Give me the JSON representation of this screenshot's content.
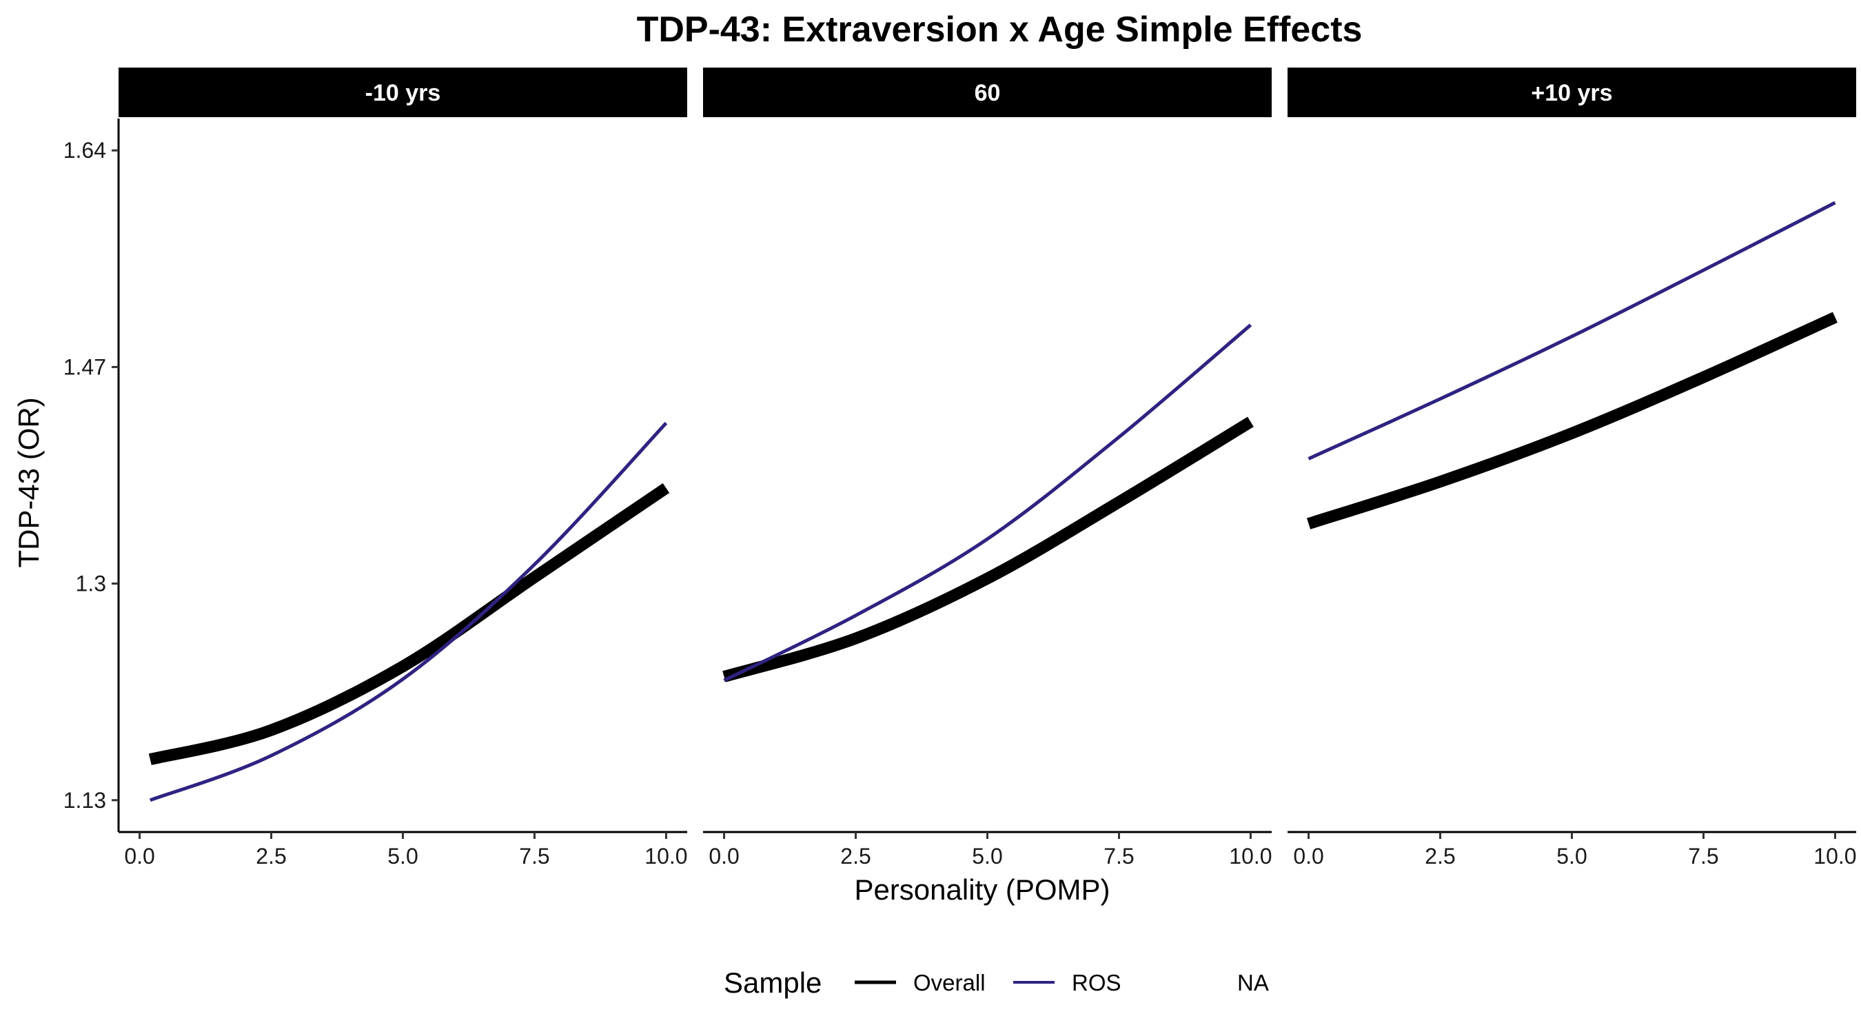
{
  "chart_data": {
    "type": "line",
    "title": "TDP-43: Extraversion x Age Simple Effects",
    "xlabel": "Personality (POMP)",
    "ylabel": "TDP-43 (OR)",
    "xlim": [
      -0.4,
      10.4
    ],
    "ylim": [
      1.105,
      1.665
    ],
    "x_ticks": [
      0,
      2.5,
      5,
      7.5,
      10
    ],
    "x_tick_labels": [
      "0.0",
      "2.5",
      "5.0",
      "7.5",
      "10.0"
    ],
    "y_ticks": [
      1.13,
      1.3,
      1.47,
      1.64
    ],
    "y_tick_labels": [
      "1.13",
      "1.3",
      "1.47",
      "1.64"
    ],
    "grid": false,
    "legend": {
      "title": "Sample",
      "position": "bottom",
      "entries": [
        {
          "label": "Overall",
          "color": "#000000",
          "width": "thick"
        },
        {
          "label": "ROS",
          "color": "#2e2381",
          "width": "thin"
        },
        {
          "label": "NA",
          "color": null,
          "width": "none"
        }
      ]
    },
    "panels": [
      {
        "strip": "-10 yrs",
        "series": [
          {
            "name": "Overall",
            "x": [
              0.2,
              2.5,
              5.0,
              7.5,
              10.0
            ],
            "y": [
              1.162,
              1.185,
              1.235,
              1.305,
              1.375
            ]
          },
          {
            "name": "ROS",
            "x": [
              0.2,
              2.5,
              5.0,
              7.5,
              10.0
            ],
            "y": [
              1.13,
              1.165,
              1.225,
              1.315,
              1.426
            ]
          }
        ]
      },
      {
        "strip": "60",
        "series": [
          {
            "name": "Overall",
            "x": [
              0.0,
              2.5,
              5.0,
              7.5,
              10.0
            ],
            "y": [
              1.227,
              1.257,
              1.304,
              1.364,
              1.427
            ]
          },
          {
            "name": "ROS",
            "x": [
              0.0,
              2.5,
              5.0,
              7.5,
              10.0
            ],
            "y": [
              1.224,
              1.275,
              1.335,
              1.415,
              1.503
            ]
          }
        ]
      },
      {
        "strip": "+10 yrs",
        "series": [
          {
            "name": "Overall",
            "x": [
              0.0,
              2.5,
              5.0,
              7.5,
              10.0
            ],
            "y": [
              1.347,
              1.38,
              1.418,
              1.462,
              1.509
            ]
          },
          {
            "name": "ROS",
            "x": [
              0.0,
              2.5,
              5.0,
              7.5,
              10.0
            ],
            "y": [
              1.398,
              1.445,
              1.494,
              1.546,
              1.599
            ]
          }
        ]
      }
    ]
  }
}
